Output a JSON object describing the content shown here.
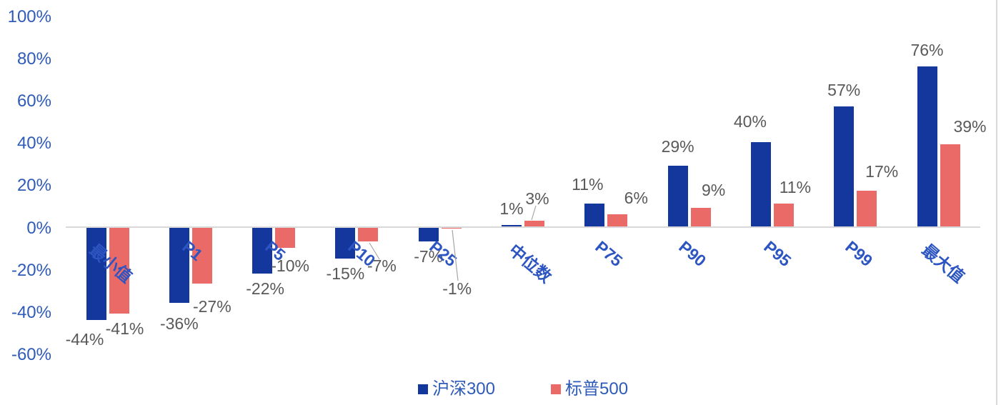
{
  "chart_data": {
    "type": "bar",
    "title": "",
    "categories": [
      {
        "label": "最小值",
        "dx": -10
      },
      {
        "label": "P1",
        "dx": 0
      },
      {
        "label": "P5",
        "dx": 0
      },
      {
        "label": "P10",
        "dx": 0
      },
      {
        "label": "P25",
        "dx": -3
      },
      {
        "label": "中位数",
        "dx": -4
      },
      {
        "label": "P75",
        "dx": -3
      },
      {
        "label": "P90",
        "dx": -3
      },
      {
        "label": "P95",
        "dx": 0
      },
      {
        "label": "P99",
        "dx": -2
      },
      {
        "label": "最大值",
        "dx": -8
      }
    ],
    "series": [
      {
        "name": "沪深300",
        "color": "#14379E",
        "values": [
          -44,
          -36,
          -22,
          -15,
          -7,
          1,
          11,
          29,
          40,
          57,
          76
        ],
        "labels": [
          "-44%",
          "-36%",
          "-22%",
          "-15%",
          "-7%",
          "1%",
          "11%",
          "29%",
          "40%",
          "57%",
          "76%"
        ],
        "label_offsets": [
          [
            -16,
            6
          ],
          [
            0,
            8
          ],
          [
            4,
            0
          ],
          [
            0,
            0
          ],
          [
            0,
            0
          ],
          [
            0,
            0
          ],
          [
            -10,
            -4
          ],
          [
            0,
            -4
          ],
          [
            -15,
            -6
          ],
          [
            0,
            0
          ],
          [
            0,
            0
          ]
        ]
      },
      {
        "name": "标普500",
        "color": "#E96A66",
        "values": [
          -41,
          -27,
          -10,
          -7,
          -1,
          3,
          6,
          9,
          11,
          17,
          39
        ],
        "labels": [
          "-41%",
          "-27%",
          "-10%",
          "-7%",
          "-1%",
          "3%",
          "6%",
          "9%",
          "11%",
          "17%",
          "39%"
        ],
        "label_offsets": [
          [
            8,
            0
          ],
          [
            14,
            11
          ],
          [
            7,
            4
          ],
          [
            19,
            13
          ],
          [
            8,
            63
          ],
          [
            4,
            -8
          ],
          [
            26,
            0
          ],
          [
            18,
            -2
          ],
          [
            16,
            0
          ],
          [
            21,
            -4
          ],
          [
            28,
            -2
          ]
        ]
      }
    ],
    "y_axis": {
      "color": "#2E5BB8",
      "range": [
        -60,
        100
      ],
      "ticks": [
        {
          "value": 100,
          "label": "100%"
        },
        {
          "value": 80,
          "label": "80%"
        },
        {
          "value": 60,
          "label": "60%"
        },
        {
          "value": 40,
          "label": "40%"
        },
        {
          "value": 20,
          "label": "20%"
        },
        {
          "value": 0,
          "label": "0%"
        },
        {
          "value": -20,
          "label": "-20%"
        },
        {
          "value": -40,
          "label": "-40%"
        },
        {
          "value": -60,
          "label": "-60%"
        }
      ]
    },
    "x_axis": {
      "category_color": "#2D55C2"
    },
    "data_label_color": "#595959",
    "axis_line_color": "#D9D9D9",
    "right_border_color": "#D9D9D9",
    "grid": false,
    "legend": {
      "position": "bottom",
      "text_color": "#2E5BB8",
      "items": [
        {
          "label": "沪深300",
          "color": "#14379E"
        },
        {
          "label": "标普500",
          "color": "#E96A66"
        }
      ]
    },
    "leader_lines": {
      "color": "#A6A6A6",
      "lines": [
        [
          750,
          288,
          744,
          308
        ],
        [
          517,
          340,
          531,
          363
        ],
        [
          633,
          322,
          641,
          393
        ]
      ]
    }
  }
}
